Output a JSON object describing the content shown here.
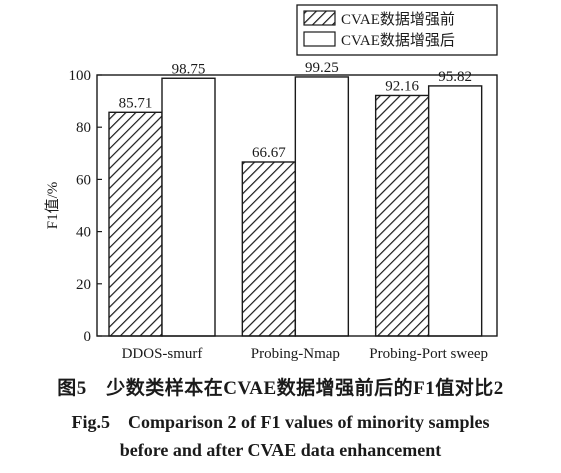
{
  "chart_data": {
    "type": "bar",
    "categories": [
      "DDOS-smurf",
      "Probing-Nmap",
      "Probing-Port sweep"
    ],
    "series": [
      {
        "name": "CVAE数据增强前",
        "values": [
          85.71,
          66.67,
          92.16
        ],
        "fill": "hatched"
      },
      {
        "name": "CVAE数据增强后",
        "values": [
          98.75,
          99.25,
          95.82
        ],
        "fill": "white"
      }
    ],
    "value_labels": [
      [
        "85.71",
        "66.67",
        "92.16"
      ],
      [
        "98.75",
        "99.25",
        "95.82"
      ]
    ],
    "ylabel": "F1值/%",
    "ylim": [
      0,
      100
    ],
    "yticks": [
      0,
      20,
      40,
      60,
      80,
      100
    ],
    "grid": false,
    "legend_position": "top-right"
  },
  "caption": {
    "cn": "图5　少数类样本在CVAE数据增强前后的F1值对比2",
    "en_line1": "Fig.5　Comparison 2 of F1 values of minority samples",
    "en_line2": "before and after CVAE data enhancement"
  },
  "colors": {
    "ink": "#1a1a1a",
    "background": "#ffffff"
  }
}
